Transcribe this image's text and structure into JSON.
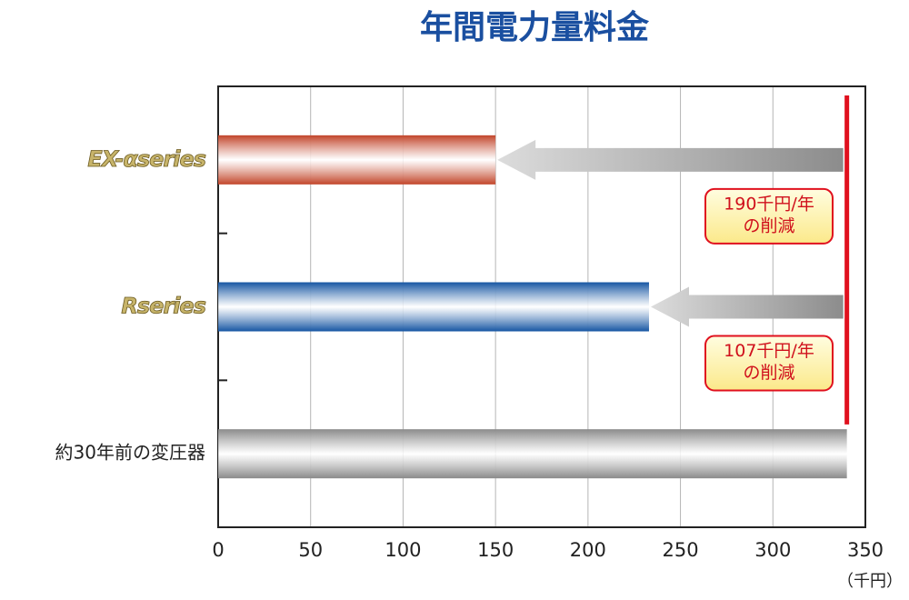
{
  "chart_data": {
    "type": "bar",
    "orientation": "horizontal",
    "title": "年間電力量料金",
    "categories": [
      "EX-αseries",
      "Rseries",
      "約30年前の変圧器"
    ],
    "values": [
      150,
      233,
      340
    ],
    "colors": [
      "#c2452a",
      "#1656a3",
      "#8a8a8a"
    ],
    "xlim": [
      0,
      350
    ],
    "xticks": [
      0,
      50,
      100,
      150,
      200,
      250,
      300,
      350
    ],
    "x_unit_label": "（千円）",
    "grid": true,
    "annotations": [
      {
        "lines": [
          "190千円/年",
          "の削減"
        ]
      },
      {
        "lines": [
          "107千円/年",
          "の削減"
        ]
      }
    ],
    "reference_color": "#e0101e"
  }
}
